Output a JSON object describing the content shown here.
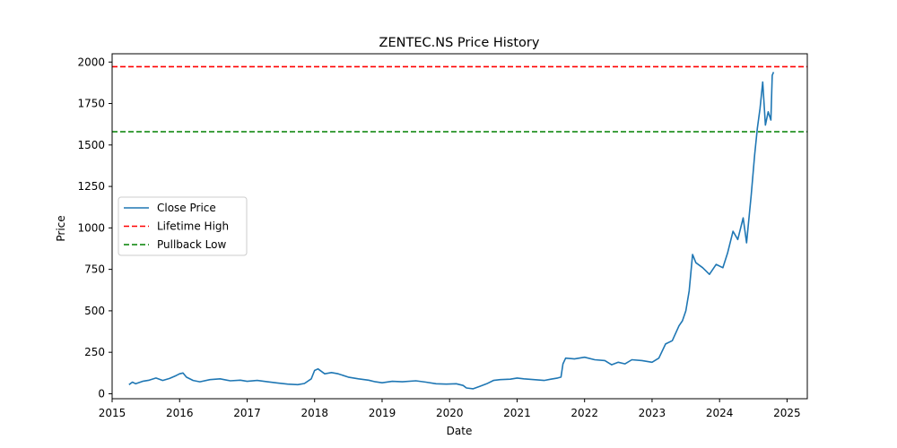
{
  "chart_data": {
    "type": "line",
    "title": "ZENTEC.NS Price History",
    "xlabel": "Date",
    "ylabel": "Price",
    "xlim": [
      2015.0,
      2025.3
    ],
    "ylim": [
      -30,
      2050
    ],
    "x_ticks": [
      2015,
      2016,
      2017,
      2018,
      2019,
      2020,
      2021,
      2022,
      2023,
      2024,
      2025
    ],
    "x_tick_labels": [
      "2015",
      "2016",
      "2017",
      "2018",
      "2019",
      "2020",
      "2021",
      "2022",
      "2023",
      "2024",
      "2025"
    ],
    "y_ticks": [
      0,
      250,
      500,
      750,
      1000,
      1250,
      1500,
      1750,
      2000
    ],
    "y_tick_labels": [
      "0",
      "250",
      "500",
      "750",
      "1000",
      "1250",
      "1500",
      "1750",
      "2000"
    ],
    "grid": false,
    "legend_position": "center-left",
    "series": [
      {
        "name": "Close Price",
        "color": "#1f77b4",
        "style": "solid",
        "points": [
          [
            2015.25,
            55
          ],
          [
            2015.3,
            70
          ],
          [
            2015.35,
            60
          ],
          [
            2015.45,
            75
          ],
          [
            2015.55,
            82
          ],
          [
            2015.65,
            95
          ],
          [
            2015.75,
            80
          ],
          [
            2015.85,
            92
          ],
          [
            2015.95,
            110
          ],
          [
            2016.0,
            120
          ],
          [
            2016.05,
            125
          ],
          [
            2016.1,
            100
          ],
          [
            2016.2,
            80
          ],
          [
            2016.3,
            72
          ],
          [
            2016.45,
            85
          ],
          [
            2016.6,
            90
          ],
          [
            2016.75,
            78
          ],
          [
            2016.9,
            82
          ],
          [
            2017.0,
            75
          ],
          [
            2017.15,
            80
          ],
          [
            2017.3,
            72
          ],
          [
            2017.45,
            65
          ],
          [
            2017.6,
            58
          ],
          [
            2017.75,
            55
          ],
          [
            2017.85,
            62
          ],
          [
            2017.95,
            90
          ],
          [
            2018.0,
            140
          ],
          [
            2018.05,
            150
          ],
          [
            2018.15,
            120
          ],
          [
            2018.25,
            128
          ],
          [
            2018.35,
            120
          ],
          [
            2018.5,
            100
          ],
          [
            2018.65,
            90
          ],
          [
            2018.8,
            82
          ],
          [
            2018.9,
            72
          ],
          [
            2019.0,
            66
          ],
          [
            2019.15,
            75
          ],
          [
            2019.3,
            72
          ],
          [
            2019.5,
            78
          ],
          [
            2019.65,
            70
          ],
          [
            2019.8,
            60
          ],
          [
            2019.95,
            58
          ],
          [
            2020.1,
            60
          ],
          [
            2020.2,
            50
          ],
          [
            2020.25,
            35
          ],
          [
            2020.35,
            30
          ],
          [
            2020.45,
            45
          ],
          [
            2020.55,
            60
          ],
          [
            2020.65,
            80
          ],
          [
            2020.75,
            85
          ],
          [
            2020.9,
            88
          ],
          [
            2021.0,
            95
          ],
          [
            2021.1,
            90
          ],
          [
            2021.25,
            85
          ],
          [
            2021.4,
            80
          ],
          [
            2021.5,
            88
          ],
          [
            2021.6,
            95
          ],
          [
            2021.65,
            100
          ],
          [
            2021.68,
            180
          ],
          [
            2021.72,
            215
          ],
          [
            2021.85,
            210
          ],
          [
            2022.0,
            220
          ],
          [
            2022.15,
            205
          ],
          [
            2022.3,
            200
          ],
          [
            2022.4,
            175
          ],
          [
            2022.5,
            190
          ],
          [
            2022.6,
            180
          ],
          [
            2022.7,
            205
          ],
          [
            2022.85,
            200
          ],
          [
            2023.0,
            190
          ],
          [
            2023.1,
            215
          ],
          [
            2023.2,
            300
          ],
          [
            2023.3,
            320
          ],
          [
            2023.4,
            410
          ],
          [
            2023.45,
            440
          ],
          [
            2023.5,
            500
          ],
          [
            2023.55,
            620
          ],
          [
            2023.6,
            840
          ],
          [
            2023.65,
            790
          ],
          [
            2023.75,
            760
          ],
          [
            2023.85,
            720
          ],
          [
            2023.95,
            780
          ],
          [
            2024.05,
            760
          ],
          [
            2024.12,
            850
          ],
          [
            2024.2,
            980
          ],
          [
            2024.27,
            930
          ],
          [
            2024.35,
            1060
          ],
          [
            2024.4,
            910
          ],
          [
            2024.47,
            1200
          ],
          [
            2024.52,
            1440
          ],
          [
            2024.56,
            1600
          ],
          [
            2024.6,
            1720
          ],
          [
            2024.64,
            1880
          ],
          [
            2024.68,
            1620
          ],
          [
            2024.72,
            1700
          ],
          [
            2024.76,
            1650
          ],
          [
            2024.78,
            1920
          ],
          [
            2024.8,
            1940
          ]
        ]
      },
      {
        "name": "Lifetime High",
        "color": "#ff0000",
        "style": "dashed",
        "y": 1972
      },
      {
        "name": "Pullback Low",
        "color": "#008000",
        "style": "dashed",
        "y": 1580
      }
    ]
  }
}
